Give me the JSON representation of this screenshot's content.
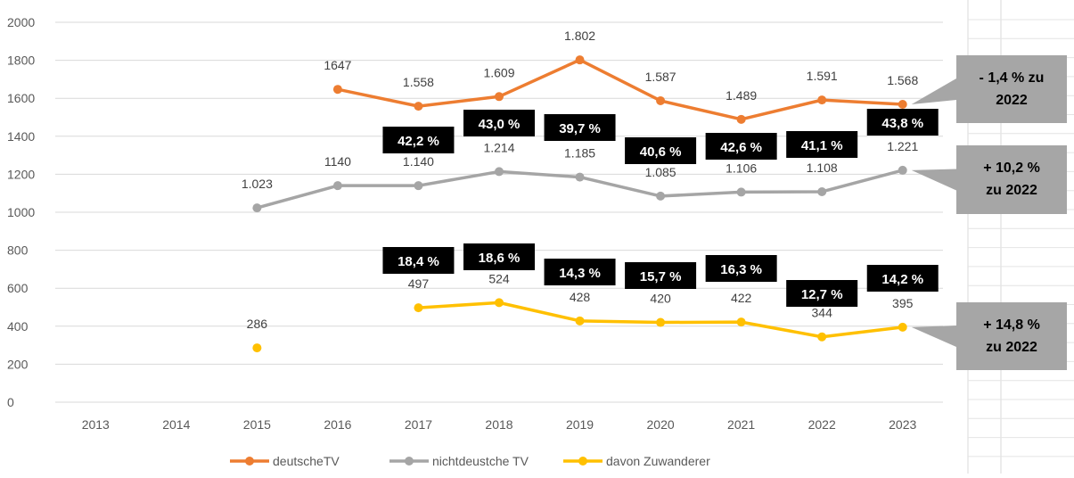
{
  "chart_data": {
    "type": "line",
    "title": "",
    "xlabel": "",
    "ylabel": "",
    "ylim": [
      0,
      2000
    ],
    "yticks": [
      0,
      200,
      400,
      600,
      800,
      1000,
      1200,
      1400,
      1600,
      1800,
      2000
    ],
    "grid": true,
    "legend_position": "bottom",
    "categories": [
      "2013",
      "2014",
      "2015",
      "2016",
      "2017",
      "2018",
      "2019",
      "2020",
      "2021",
      "2022",
      "2023"
    ],
    "series": [
      {
        "name": "deutscheTV",
        "color": "#ED7D31",
        "values": [
          null,
          null,
          null,
          1647,
          1558,
          1609,
          1802,
          1587,
          1489,
          1591,
          1568
        ],
        "labels": [
          null,
          null,
          null,
          "1647",
          "1.558",
          "1.609",
          "1.802",
          "1.587",
          "1.489",
          "1.591",
          "1.568"
        ]
      },
      {
        "name": "nichtdeustche TV",
        "color": "#A5A5A5",
        "values": [
          null,
          null,
          1023,
          1140,
          1140,
          1214,
          1185,
          1085,
          1106,
          1108,
          1221
        ],
        "labels": [
          null,
          null,
          "1.023",
          "1140",
          "1.140",
          "1.214",
          "1.185",
          "1.085",
          "1.106",
          "1.108",
          "1.221"
        ]
      },
      {
        "name": "davon Zuwanderer",
        "color": "#FFC000",
        "values": [
          null,
          null,
          286,
          null,
          497,
          524,
          428,
          420,
          422,
          344,
          395
        ],
        "labels": [
          null,
          null,
          "286",
          null,
          "497",
          "524",
          "428",
          "420",
          "422",
          "344",
          "395"
        ]
      }
    ],
    "share_boxes_upper": [
      {
        "category": "2017",
        "text": "42,2 %"
      },
      {
        "category": "2018",
        "text": "43,0 %"
      },
      {
        "category": "2019",
        "text": "39,7 %"
      },
      {
        "category": "2020",
        "text": "40,6 %"
      },
      {
        "category": "2021",
        "text": "42,6 %"
      },
      {
        "category": "2022",
        "text": "41,1 %"
      },
      {
        "category": "2023",
        "text": "43,8 %"
      }
    ],
    "share_boxes_lower": [
      {
        "category": "2017",
        "text": "18,4 %"
      },
      {
        "category": "2018",
        "text": "18,6 %"
      },
      {
        "category": "2019",
        "text": "14,3 %"
      },
      {
        "category": "2020",
        "text": "15,7 %"
      },
      {
        "category": "2021",
        "text": "16,3 %"
      },
      {
        "category": "2022",
        "text": "12,7 %"
      },
      {
        "category": "2023",
        "text": "14,2 %"
      }
    ],
    "callouts": [
      {
        "series": "deutscheTV",
        "lines": [
          "- 1,4 % zu",
          "2022"
        ]
      },
      {
        "series": "nichtdeustche TV",
        "lines": [
          "+ 10,2 %",
          "zu 2022"
        ]
      },
      {
        "series": "davon Zuwanderer",
        "lines": [
          "+ 14,8 %",
          "zu 2022"
        ]
      }
    ]
  }
}
